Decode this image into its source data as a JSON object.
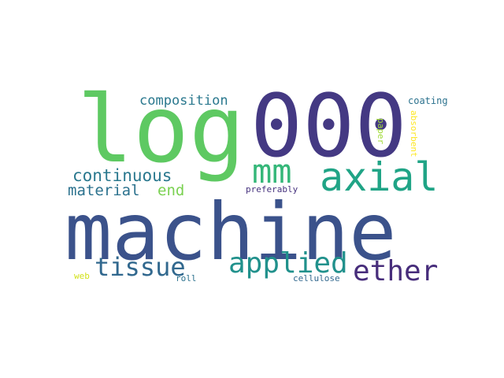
{
  "words": [
    {
      "key": "machine",
      "text": "machine",
      "color": "#3b528b"
    },
    {
      "key": "log",
      "text": "log",
      "color": "#5ec962"
    },
    {
      "key": "000",
      "text": "000",
      "color": "#443983"
    },
    {
      "key": "axial",
      "text": "axial",
      "color": "#20a486"
    },
    {
      "key": "mm",
      "text": "mm",
      "color": "#35b779"
    },
    {
      "key": "applied",
      "text": "applied",
      "color": "#21918c"
    },
    {
      "key": "ether",
      "text": "ether",
      "color": "#472d7b"
    },
    {
      "key": "tissue",
      "text": "tissue",
      "color": "#31688e"
    },
    {
      "key": "continuous",
      "text": "continuous",
      "color": "#2a788e"
    },
    {
      "key": "material",
      "text": "material",
      "color": "#2c728e"
    },
    {
      "key": "end",
      "text": "end",
      "color": "#7ad151"
    },
    {
      "key": "composition",
      "text": "composition",
      "color": "#2a788e"
    },
    {
      "key": "coating",
      "text": "coating",
      "color": "#2c728e"
    },
    {
      "key": "absorbent",
      "text": "absorbent",
      "color": "#fde725"
    },
    {
      "key": "paper",
      "text": "paper",
      "color": "#a0da39"
    },
    {
      "key": "preferably",
      "text": "preferably",
      "color": "#46327e"
    },
    {
      "key": "cellulose",
      "text": "cellulose",
      "color": "#31688e"
    },
    {
      "key": "roll",
      "text": "roll",
      "color": "#2c728e"
    },
    {
      "key": "web",
      "text": "web",
      "color": "#d2e21b"
    }
  ]
}
